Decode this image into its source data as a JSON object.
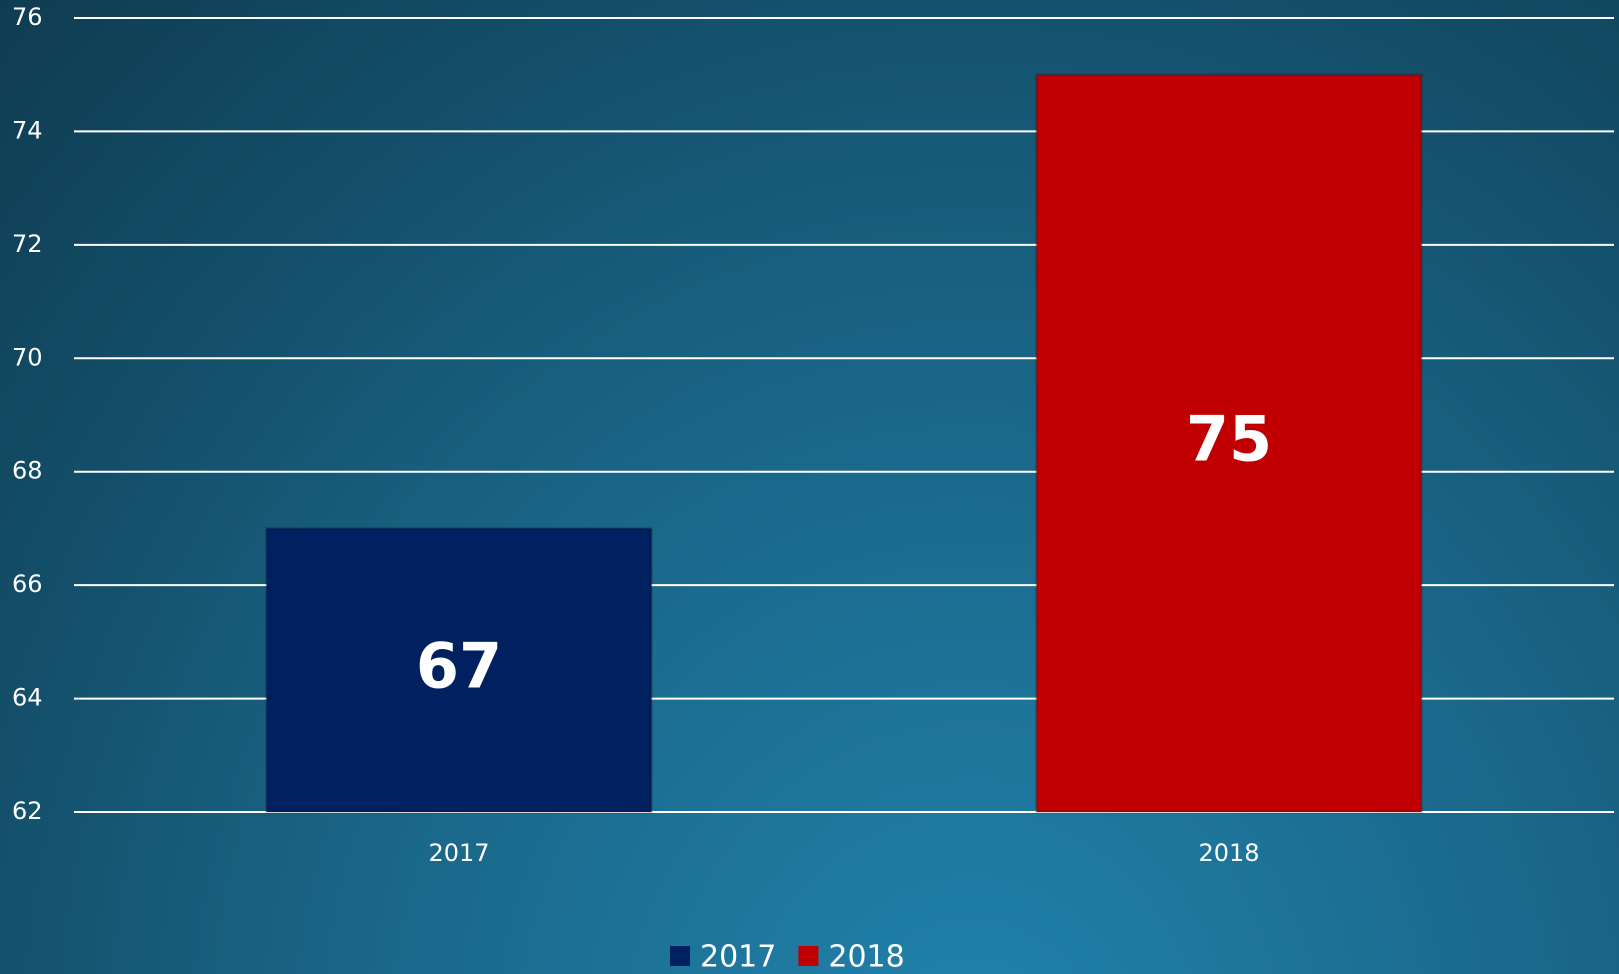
{
  "chart_data": {
    "type": "bar",
    "categories": [
      "2017",
      "2018"
    ],
    "values": [
      67,
      75
    ],
    "colors": [
      "#002060",
      "#c00000"
    ],
    "ylim": [
      62,
      76
    ],
    "yticks": [
      62,
      64,
      66,
      68,
      70,
      72,
      74,
      76
    ],
    "grid": true,
    "legend": "bottom"
  }
}
